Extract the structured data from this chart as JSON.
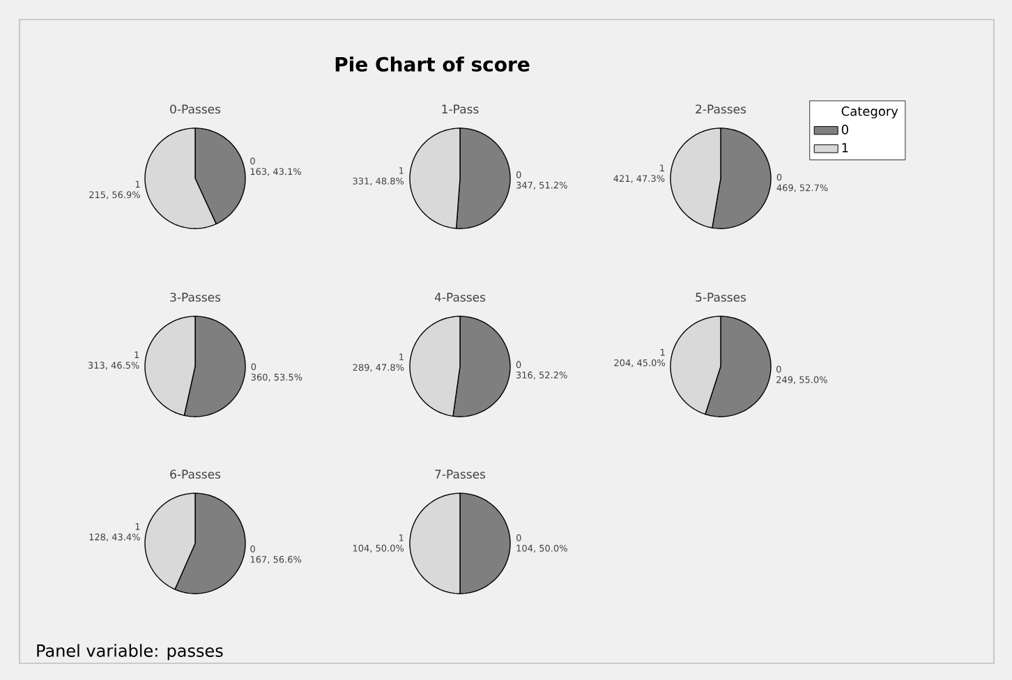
{
  "chart_data": [
    {
      "type": "pie",
      "title": "0-Passes",
      "categories": [
        "0",
        "1"
      ],
      "values": [
        163,
        215
      ],
      "value_labels": [
        "163, 43.1%",
        "215, 56.9%"
      ],
      "colors": [
        "#7f7f7f",
        "#d9d9d9"
      ]
    },
    {
      "type": "pie",
      "title": "Pie Chart of score",
      "subtitle": "1-Pass",
      "categories": [
        "0",
        "1"
      ],
      "values": [
        347,
        331
      ],
      "value_labels": [
        "347, 51.2%",
        "331, 48.8%"
      ],
      "colors": [
        "#7f7f7f",
        "#d9d9d9"
      ]
    },
    {
      "type": "pie",
      "title": "2-Passes",
      "categories": [
        "0",
        "1"
      ],
      "values": [
        469,
        421
      ],
      "value_labels": [
        "469, 52.7%",
        "421, 47.3%"
      ],
      "colors": [
        "#7f7f7f",
        "#d9d9d9"
      ],
      "legend": "right",
      "legend_title": "Category"
    },
    {
      "type": "pie",
      "title": "3-Passes",
      "categories": [
        "0",
        "1"
      ],
      "values": [
        360,
        313
      ],
      "value_labels": [
        "360, 53.5%",
        "313, 46.5%"
      ],
      "colors": [
        "#7f7f7f",
        "#d9d9d9"
      ]
    },
    {
      "type": "pie",
      "title": "4-Passes",
      "categories": [
        "0",
        "1"
      ],
      "values": [
        316,
        289
      ],
      "value_labels": [
        "316, 52.2%",
        "289, 47.8%"
      ],
      "colors": [
        "#7f7f7f",
        "#d9d9d9"
      ]
    },
    {
      "type": "pie",
      "title": "5-Passes",
      "categories": [
        "0",
        "1"
      ],
      "values": [
        249,
        204
      ],
      "value_labels": [
        "249, 55.0%",
        "204, 45.0%"
      ],
      "colors": [
        "#7f7f7f",
        "#d9d9d9"
      ]
    },
    {
      "type": "pie",
      "title": "6-Passes",
      "categories": [
        "0",
        "1"
      ],
      "values": [
        167,
        128
      ],
      "value_labels": [
        "167, 56.6%",
        "128, 43.4%"
      ],
      "colors": [
        "#7f7f7f",
        "#d9d9d9"
      ],
      "annotations": [
        "Panel variable: passes"
      ]
    },
    {
      "type": "pie",
      "title": "7-Passes",
      "categories": [
        "0",
        "1"
      ],
      "values": [
        104,
        104
      ],
      "value_labels": [
        "104, 50.0%",
        "104, 50.0%"
      ],
      "colors": [
        "#7f7f7f",
        "#d9d9d9"
      ]
    }
  ]
}
